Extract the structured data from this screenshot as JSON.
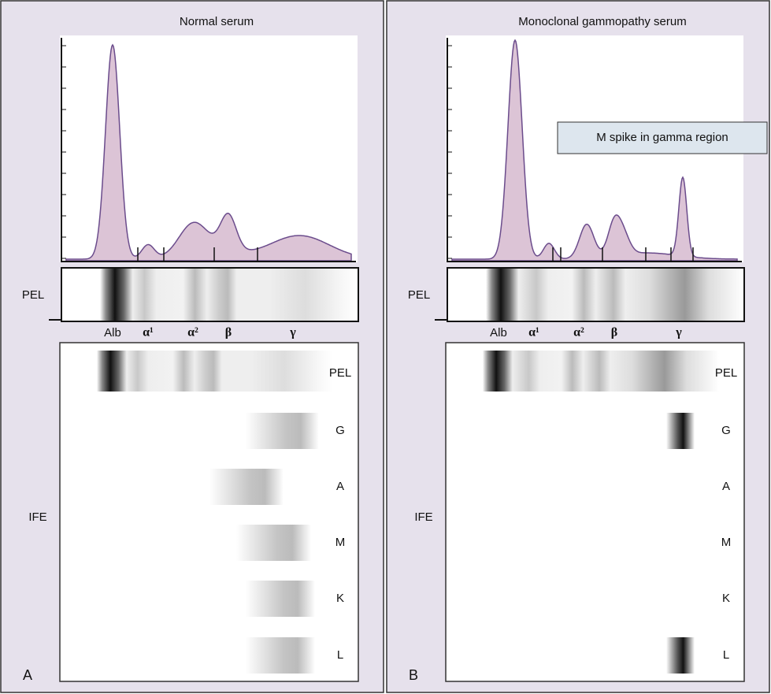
{
  "panels": [
    {
      "letter": "A",
      "title": "Normal serum",
      "strip_label": "PEL",
      "fractions": [
        "Alb",
        "α¹",
        "α²",
        "β",
        "γ"
      ],
      "ife_label": "IFE",
      "ife_rows": [
        "PEL",
        "G",
        "A",
        "M",
        "K",
        "L"
      ]
    },
    {
      "letter": "B",
      "title": "Monoclonal gammopathy serum",
      "strip_label": "PEL",
      "fractions": [
        "Alb",
        "α¹",
        "α²",
        "β",
        "γ"
      ],
      "ife_label": "IFE",
      "ife_rows": [
        "PEL",
        "G",
        "A",
        "M",
        "K",
        "L"
      ],
      "annotation": "M spike in gamma region"
    }
  ]
}
